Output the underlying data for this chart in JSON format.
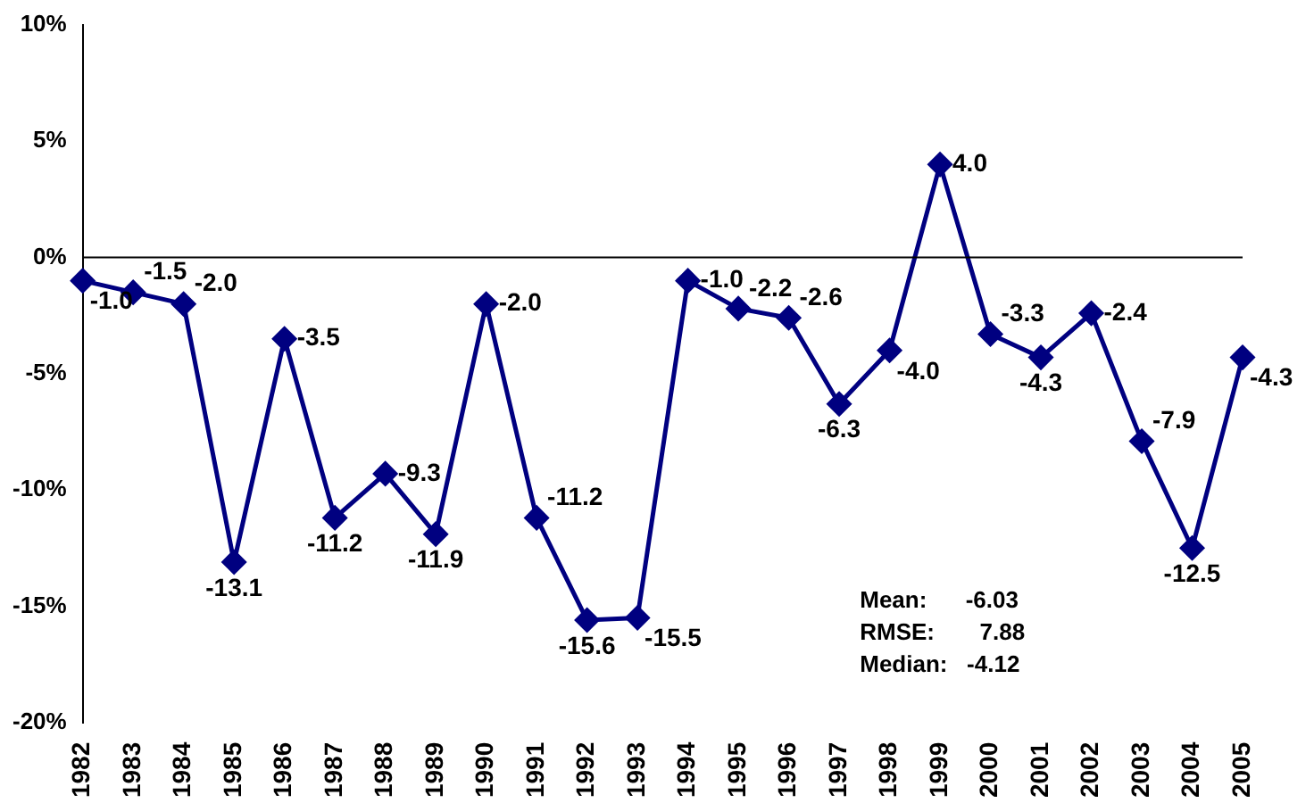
{
  "chart_data": {
    "type": "line",
    "categories": [
      "1982",
      "1983",
      "1984",
      "1985",
      "1986",
      "1987",
      "1988",
      "1989",
      "1990",
      "1991",
      "1992",
      "1993",
      "1994",
      "1995",
      "1996",
      "1997",
      "1998",
      "1999",
      "2000",
      "2001",
      "2002",
      "2003",
      "2004",
      "2005"
    ],
    "values": [
      -1.0,
      -1.5,
      -2.0,
      -13.1,
      -3.5,
      -11.2,
      -9.3,
      -11.9,
      -2.0,
      -11.2,
      -15.6,
      -15.5,
      -1.0,
      -2.2,
      -2.6,
      -6.3,
      -4.0,
      4.0,
      -3.3,
      -4.3,
      -2.4,
      -7.9,
      -12.5,
      -4.3
    ],
    "value_labels": [
      "-1.0",
      "-1.5",
      "-2.0",
      "-13.1",
      "-3.5",
      "-11.2",
      "-9.3",
      "-11.9",
      "-2.0",
      "-11.2",
      "-15.6",
      "-15.5",
      "-1.0",
      "-2.2",
      "-2.6",
      "-6.3",
      "-4.0",
      "4.0",
      "-3.3",
      "-4.3",
      "-2.4",
      "-7.9",
      "-12.5",
      "-4.3"
    ],
    "color": "#000080",
    "marker": "diamond",
    "line_style": "solid",
    "grid": false,
    "legend": false,
    "ylim": [
      -20,
      10
    ],
    "yticks": [
      {
        "value": -20,
        "label": "-20%"
      },
      {
        "value": -15,
        "label": "-15%"
      },
      {
        "value": -10,
        "label": "-10%"
      },
      {
        "value": -5,
        "label": "-5%"
      },
      {
        "value": 0,
        "label": "0%"
      },
      {
        "value": 5,
        "label": "5%"
      },
      {
        "value": 10,
        "label": "10%"
      }
    ],
    "ref_lines": [
      {
        "axis": "y",
        "value": 0,
        "color": "#000000"
      }
    ],
    "annotations": [
      "Mean:      -6.03",
      "RMSE:       7.88",
      "Median:   -4.12"
    ]
  }
}
